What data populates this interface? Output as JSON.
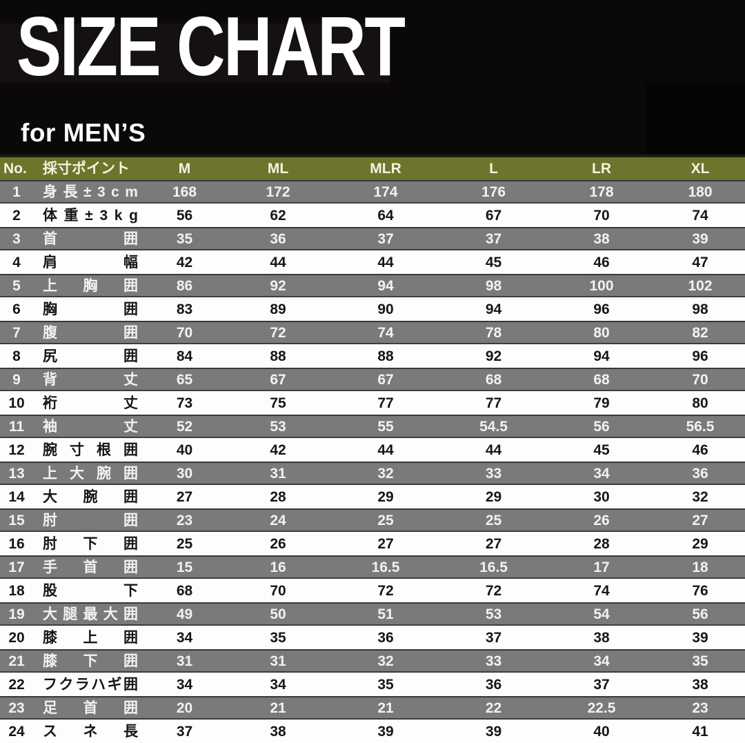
{
  "title": "SIZE CHART",
  "subtitle": "for MEN’S",
  "colors": {
    "background": "#0b0908",
    "header_bg": "#6c752b",
    "header_text": "#f5f3e2",
    "row_gray_bg": "#7a7a7a",
    "row_gray_text": "#f2f2f2",
    "row_white_bg": "#fdfdfd",
    "row_white_text": "#161616"
  },
  "chart_data": {
    "type": "table",
    "title": "SIZE CHART",
    "subtitle": "for MEN’S",
    "columns": [
      "No.",
      "採寸ポイント",
      "M",
      "ML",
      "MLR",
      "L",
      "LR",
      "XL"
    ],
    "rows": [
      [
        1,
        "身長±3cm",
        168,
        172,
        174,
        176,
        178,
        180
      ],
      [
        2,
        "体重±3kg",
        56,
        62,
        64,
        67,
        70,
        74
      ],
      [
        3,
        "首囲",
        35,
        36,
        37,
        37,
        38,
        39
      ],
      [
        4,
        "肩幅",
        42,
        44,
        44,
        45,
        46,
        47
      ],
      [
        5,
        "上胸囲",
        86,
        92,
        94,
        98,
        100,
        102
      ],
      [
        6,
        "胸囲",
        83,
        89,
        90,
        94,
        96,
        98
      ],
      [
        7,
        "腹囲",
        70,
        72,
        74,
        78,
        80,
        82
      ],
      [
        8,
        "尻囲",
        84,
        88,
        88,
        92,
        94,
        96
      ],
      [
        9,
        "背丈",
        65,
        67,
        67,
        68,
        68,
        70
      ],
      [
        10,
        "裄丈",
        73,
        75,
        77,
        77,
        79,
        80
      ],
      [
        11,
        "袖丈",
        52,
        53,
        55,
        54.5,
        56,
        56.5
      ],
      [
        12,
        "腕寸根囲",
        40,
        42,
        44,
        44,
        45,
        46
      ],
      [
        13,
        "上大腕囲",
        30,
        31,
        32,
        33,
        34,
        36
      ],
      [
        14,
        "大腕囲",
        27,
        28,
        29,
        29,
        30,
        32
      ],
      [
        15,
        "肘囲",
        23,
        24,
        25,
        25,
        26,
        27
      ],
      [
        16,
        "肘下囲",
        25,
        26,
        27,
        27,
        28,
        29
      ],
      [
        17,
        "手首囲",
        15,
        16,
        16.5,
        16.5,
        17,
        18
      ],
      [
        18,
        "股下",
        68,
        70,
        72,
        72,
        74,
        76
      ],
      [
        19,
        "大腿最大囲",
        49,
        50,
        51,
        53,
        54,
        56
      ],
      [
        20,
        "膝上囲",
        34,
        35,
        36,
        37,
        38,
        39
      ],
      [
        21,
        "膝下囲",
        31,
        31,
        32,
        33,
        34,
        35
      ],
      [
        22,
        "フクラハギ囲",
        34,
        34,
        35,
        36,
        37,
        38
      ],
      [
        23,
        "足首囲",
        20,
        21,
        21,
        22,
        22.5,
        23
      ],
      [
        24,
        "スネ長",
        37,
        38,
        39,
        39,
        40,
        41
      ]
    ],
    "layout": {
      "row_striping": "odd data rows gray, even data rows white",
      "label_justification": "label characters spread to both edges of label column",
      "value_alignment": "center"
    }
  }
}
